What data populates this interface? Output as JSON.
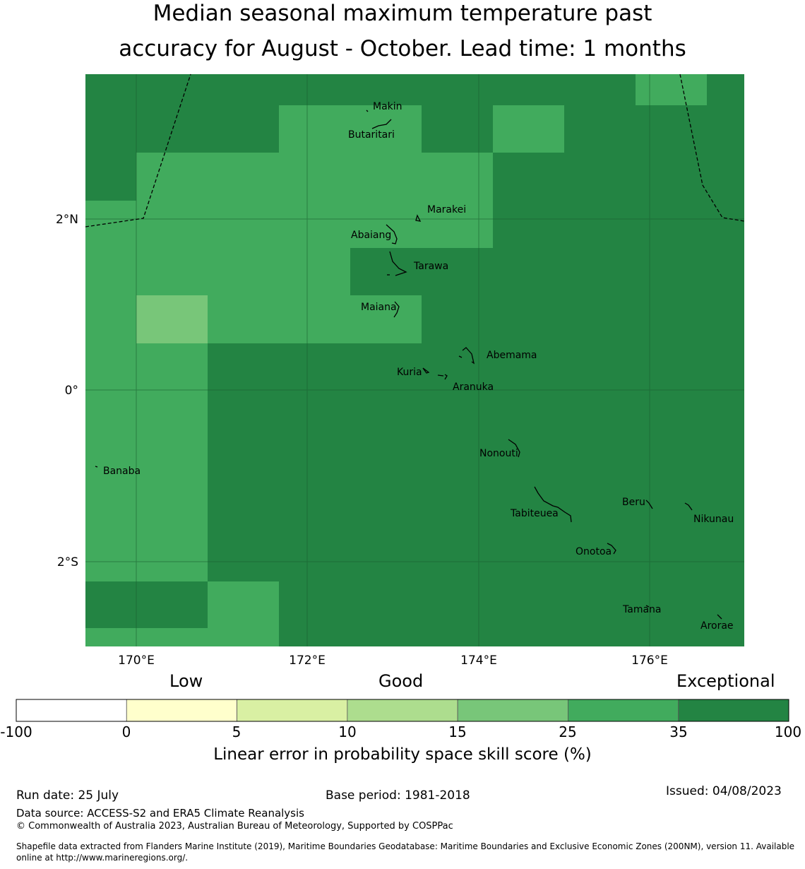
{
  "title": {
    "line1": "Median seasonal maximum temperature past",
    "line2": "accuracy for August - October. Lead time: 1 months"
  },
  "map": {
    "lat_ticks": [
      "2°N",
      "0°",
      "2°S"
    ],
    "lon_ticks": [
      "170°E",
      "172°E",
      "174°E",
      "176°E"
    ],
    "places": [
      "Makin",
      "Butaritari",
      "Marakei",
      "Abaiang",
      "Tarawa",
      "Maiana",
      "Abemama",
      "Kuria",
      "Aranuka",
      "Nonouti",
      "Banaba",
      "Beru",
      "Nikunau",
      "Tabiteuea",
      "Onotoa",
      "Tamana",
      "Arorae"
    ]
  },
  "colorbar": {
    "category_labels": [
      "Low",
      "Good",
      "Exceptional"
    ],
    "bins": [
      "-100",
      "0",
      "5",
      "10",
      "15",
      "25",
      "35",
      "100"
    ],
    "colors": [
      "#ffffff",
      "#ffffcc",
      "#d9f0a3",
      "#addd8e",
      "#78c679",
      "#41ab5d",
      "#238443"
    ],
    "label": "Linear error in probability space skill score (%)"
  },
  "footer": {
    "run_date": "Run date: 25 July",
    "base_period": "Base period: 1981-2018",
    "issued": "Issued: 04/08/2023",
    "data_source": "Data source: ACCESS-S2 and ERA5 Climate Reanalysis",
    "copyright": "© Commonwealth of Australia 2023, Australian Bureau of Meteorology, Supported by COSPPac",
    "shapefile_line1": "Shapefile data extracted from Flanders Marine Institute (2019), Maritime Boundaries Geodatabase: Maritime Boundaries and Exclusive Economic Zones (200NM), version 11. Available",
    "shapefile_line2": "online at http://www.marineregions.org/."
  }
}
